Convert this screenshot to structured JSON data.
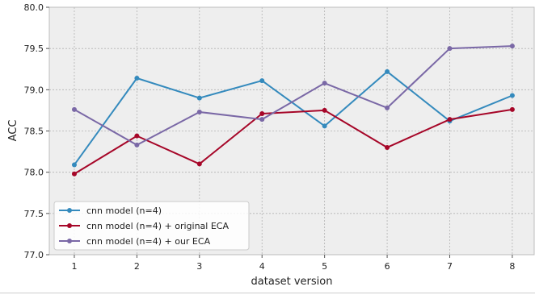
{
  "chart_data": {
    "type": "line",
    "xlabel": "dataset version",
    "ylabel": "ACC",
    "x": [
      1,
      2,
      3,
      4,
      5,
      6,
      7,
      8
    ],
    "xlim": [
      0.6,
      8.35
    ],
    "ylim": [
      77.0,
      80.0
    ],
    "yticks": [
      "77.0",
      "77.5",
      "78.0",
      "78.5",
      "79.0",
      "79.5",
      "80.0"
    ],
    "xticks": [
      "1",
      "2",
      "3",
      "4",
      "5",
      "6",
      "7",
      "8"
    ],
    "grid": true,
    "legend_position": "lower-left",
    "series": [
      {
        "name": "cnn model (n=4)",
        "color": "#348ABD",
        "values": [
          78.09,
          79.14,
          78.9,
          79.11,
          78.56,
          79.22,
          78.62,
          78.93
        ]
      },
      {
        "name": "cnn model (n=4) + original ECA",
        "color": "#A60628",
        "values": [
          77.98,
          78.44,
          78.1,
          78.71,
          78.75,
          78.3,
          78.64,
          78.76
        ]
      },
      {
        "name": "cnn model (n=4) + our ECA",
        "color": "#7A68A6",
        "values": [
          78.76,
          78.33,
          78.73,
          78.64,
          79.08,
          78.78,
          79.5,
          79.53
        ]
      }
    ]
  }
}
